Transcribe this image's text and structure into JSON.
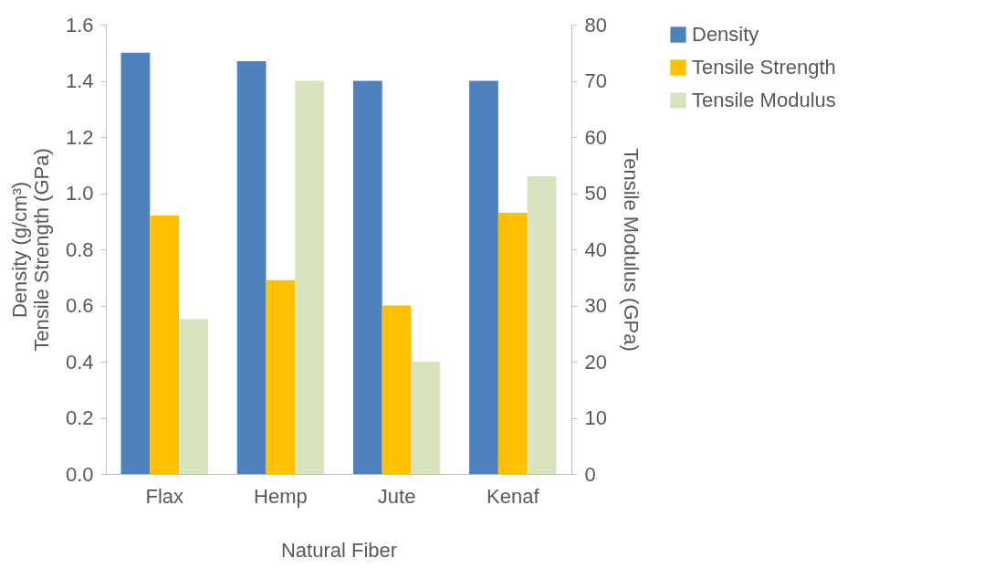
{
  "chart_data": {
    "type": "bar",
    "xlabel": "Natural Fiber",
    "ylabel": "Density (g/cm³)\nTensile Strength (GPa)",
    "y2label": "Tensile Modulus (GPa)",
    "categories": [
      "Flax",
      "Hemp",
      "Jute",
      "Kenaf"
    ],
    "series": [
      {
        "name": "Density",
        "color": "#4f81bd",
        "values": [
          1.5,
          1.47,
          1.4,
          1.4
        ]
      },
      {
        "name": "Tensile Strength",
        "color": "#ffc000",
        "values": [
          0.92,
          0.69,
          0.6,
          0.93
        ]
      },
      {
        "name": "Tensile Modulus",
        "color": "#d7e4bd",
        "values": [
          27.6,
          70,
          20,
          53
        ],
        "axis": "y2"
      }
    ],
    "ylim": [
      0,
      1.6
    ],
    "yticks": [
      {
        "value": 0,
        "label": "0.0"
      },
      {
        "value": 0.2,
        "label": "0.2"
      },
      {
        "value": 0.4,
        "label": "0.4"
      },
      {
        "value": 0.6,
        "label": "0.6"
      },
      {
        "value": 0.8,
        "label": "0.8"
      },
      {
        "value": 1,
        "label": "1.0"
      },
      {
        "value": 1.2,
        "label": "1.2"
      },
      {
        "value": 1.4,
        "label": "1.4"
      },
      {
        "value": 1.6,
        "label": "1.6"
      }
    ],
    "y2lim": [
      0,
      80
    ],
    "y2ticks": [
      0,
      10,
      20,
      30,
      40,
      50,
      60,
      70,
      80
    ],
    "grid": false,
    "legend": "right"
  }
}
